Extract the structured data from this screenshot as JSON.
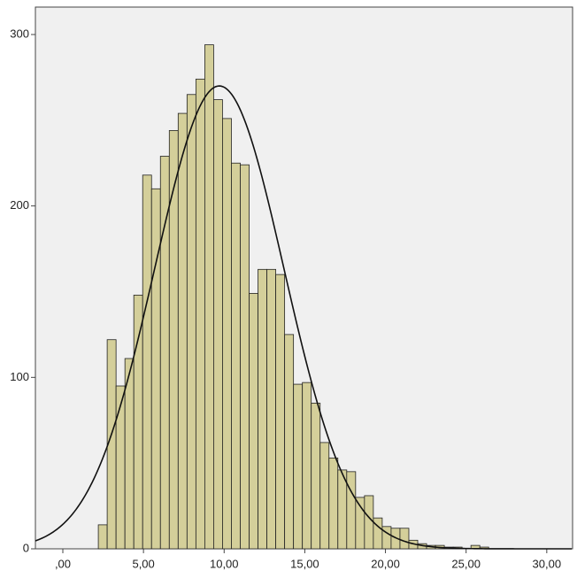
{
  "chart_data": {
    "type": "histogram",
    "bins": [
      2.2,
      2.75,
      3.3,
      3.85,
      4.4,
      4.95,
      5.5,
      6.05,
      6.6,
      7.15,
      7.7,
      8.25,
      8.8,
      9.35,
      9.9,
      10.45,
      11,
      11.55,
      12.1,
      12.65,
      13.2,
      13.75,
      14.3,
      14.85,
      15.4,
      15.95,
      16.5,
      17.05,
      17.6,
      18.15,
      18.7,
      19.25,
      19.8,
      20.35,
      20.9,
      21.45,
      22,
      22.55,
      23.1,
      23.65,
      24.2,
      24.75,
      25.3,
      25.85,
      26.4
    ],
    "values": [
      14,
      122,
      95,
      111,
      148,
      218,
      210,
      229,
      244,
      254,
      265,
      274,
      294,
      262,
      251,
      225,
      224,
      149,
      163,
      163,
      160,
      125,
      96,
      97,
      85,
      62,
      53,
      46,
      45,
      30,
      31,
      18,
      13,
      12,
      12,
      5,
      3,
      2,
      2,
      1,
      1,
      0,
      2,
      1
    ],
    "color": "#d4cf9a",
    "normal_curve": {
      "mean": 9.7,
      "sd": 4.0,
      "peak": 270
    },
    "xlim": [
      -1.7,
      31.6
    ],
    "ylim": [
      0,
      316
    ],
    "xticks": [
      {
        "value": 0,
        "label": ",00"
      },
      {
        "value": 5,
        "label": "5,00"
      },
      {
        "value": 10,
        "label": "10,00"
      },
      {
        "value": 15,
        "label": "15,00"
      },
      {
        "value": 20,
        "label": "20,00"
      },
      {
        "value": 25,
        "label": "25,00"
      },
      {
        "value": 30,
        "label": "30,00"
      }
    ],
    "yticks": [
      0,
      100,
      200,
      300
    ]
  }
}
